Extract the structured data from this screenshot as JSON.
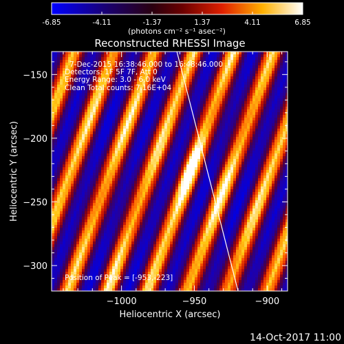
{
  "colorbar": {
    "ticks": [
      "-6.85",
      "-4.11",
      "-1.37",
      "1.37",
      "4.11",
      "6.85"
    ],
    "units_label": "(photons cm⁻² s⁻¹ asec⁻²)"
  },
  "chart_data": {
    "type": "heatmap",
    "title": "Reconstructed RHESSI Image",
    "xlabel": "Heliocentric X (arcsec)",
    "ylabel": "Heliocentric Y (arcsec)",
    "xlim": [
      -1048,
      -886
    ],
    "ylim": [
      -320,
      -132
    ],
    "xticks": [
      -1000,
      -950,
      -900
    ],
    "xtick_labels": [
      "−1000",
      "−950",
      "−900"
    ],
    "yticks": [
      -150,
      -200,
      -250,
      -300
    ],
    "ytick_labels": [
      "−150",
      "−200",
      "−250",
      "−300"
    ],
    "colorbar_range": [
      -6.85,
      6.85
    ],
    "colormap": "hot/blue diverging (blue → purple → red → yellow → white)",
    "peak": {
      "x": -953,
      "y": -223
    },
    "limb_line": [
      [
        -962,
        -132
      ],
      [
        -920,
        -320
      ]
    ],
    "annotations": {
      "time": "7-Dec-2015 16:38:46.000 to 16:48:46.000",
      "detectors": "Detectors: 1F 5F 7F, Att 0",
      "energy": "Energy Range: 3.0 - 6.0 keV",
      "clean": "Clean     Total counts: 7.16E+04",
      "peak_text": "Position of Peak = [-953,-223]"
    }
  },
  "footer": {
    "timestamp": "14-Oct-2017 11:00"
  }
}
